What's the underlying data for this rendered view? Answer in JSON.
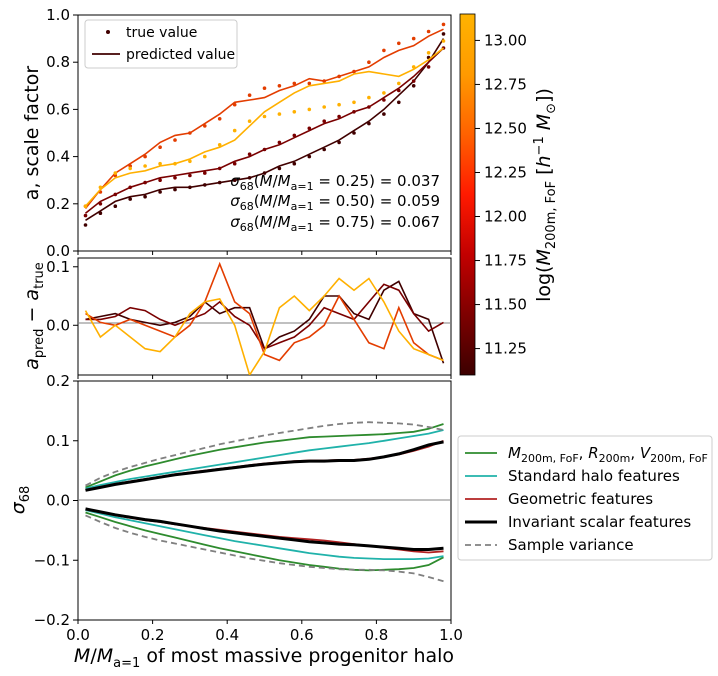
{
  "chart_data": [
    {
      "type": "line",
      "panel": "top",
      "ylabel": "a, scale factor",
      "xlim": [
        0,
        1
      ],
      "ylim": [
        0,
        1
      ],
      "yticks": [
        "0.0",
        "0.2",
        "0.4",
        "0.6",
        "0.8",
        "1.0"
      ],
      "legend": {
        "placement": "top-left",
        "entries": [
          "true value",
          "predicted value"
        ]
      },
      "annotations": [
        "σ68(M/Ma=1 = 0.25) = 0.037",
        "σ68(M/Ma=1 = 0.50) = 0.059",
        "σ68(M/Ma=1 = 0.75) = 0.067"
      ],
      "x": [
        0.02,
        0.06,
        0.1,
        0.14,
        0.18,
        0.22,
        0.26,
        0.3,
        0.34,
        0.38,
        0.42,
        0.46,
        0.5,
        0.54,
        0.58,
        0.62,
        0.66,
        0.7,
        0.74,
        0.78,
        0.82,
        0.86,
        0.9,
        0.94,
        0.98
      ],
      "series": [
        {
          "mass": 11.1,
          "color": "#400000",
          "style": "dots",
          "values": [
            0.11,
            0.16,
            0.19,
            0.22,
            0.23,
            0.25,
            0.26,
            0.27,
            0.28,
            0.29,
            0.3,
            0.31,
            0.33,
            0.35,
            0.37,
            0.4,
            0.43,
            0.46,
            0.5,
            0.54,
            0.58,
            0.63,
            0.7,
            0.82,
            0.92
          ]
        },
        {
          "mass": 11.1,
          "color": "#400000",
          "style": "line",
          "values": [
            0.13,
            0.17,
            0.21,
            0.23,
            0.24,
            0.26,
            0.27,
            0.27,
            0.28,
            0.29,
            0.3,
            0.31,
            0.33,
            0.36,
            0.38,
            0.41,
            0.44,
            0.47,
            0.51,
            0.55,
            0.6,
            0.66,
            0.72,
            0.8,
            0.9
          ]
        },
        {
          "mass": 11.6,
          "color": "#7a0000",
          "style": "dots",
          "values": [
            0.15,
            0.2,
            0.24,
            0.27,
            0.29,
            0.3,
            0.31,
            0.32,
            0.33,
            0.35,
            0.37,
            0.41,
            0.43,
            0.46,
            0.49,
            0.52,
            0.55,
            0.57,
            0.59,
            0.61,
            0.64,
            0.68,
            0.72,
            0.78,
            0.86
          ]
        },
        {
          "mass": 11.6,
          "color": "#7a0000",
          "style": "line",
          "values": [
            0.16,
            0.21,
            0.24,
            0.27,
            0.29,
            0.31,
            0.32,
            0.33,
            0.34,
            0.35,
            0.38,
            0.4,
            0.43,
            0.45,
            0.48,
            0.51,
            0.54,
            0.56,
            0.59,
            0.61,
            0.65,
            0.69,
            0.74,
            0.8,
            0.86
          ]
        },
        {
          "mass": 12.2,
          "color": "#e33d00",
          "style": "dots",
          "values": [
            0.19,
            0.25,
            0.32,
            0.36,
            0.4,
            0.44,
            0.47,
            0.5,
            0.53,
            0.56,
            0.62,
            0.66,
            0.69,
            0.7,
            0.71,
            0.71,
            0.72,
            0.74,
            0.76,
            0.8,
            0.85,
            0.88,
            0.9,
            0.93,
            0.96
          ]
        },
        {
          "mass": 12.2,
          "color": "#e33d00",
          "style": "line",
          "values": [
            0.18,
            0.26,
            0.33,
            0.37,
            0.41,
            0.46,
            0.49,
            0.5,
            0.54,
            0.58,
            0.63,
            0.64,
            0.65,
            0.68,
            0.7,
            0.73,
            0.72,
            0.74,
            0.76,
            0.78,
            0.82,
            0.85,
            0.87,
            0.91,
            0.94
          ]
        },
        {
          "mass": 12.9,
          "color": "#ffb000",
          "style": "dots",
          "values": [
            0.19,
            0.27,
            0.33,
            0.35,
            0.36,
            0.37,
            0.37,
            0.38,
            0.4,
            0.45,
            0.51,
            0.55,
            0.57,
            0.58,
            0.59,
            0.6,
            0.61,
            0.62,
            0.63,
            0.65,
            0.67,
            0.71,
            0.78,
            0.84,
            0.89
          ]
        },
        {
          "mass": 12.9,
          "color": "#ffb000",
          "style": "line",
          "values": [
            0.19,
            0.26,
            0.31,
            0.33,
            0.34,
            0.36,
            0.37,
            0.39,
            0.42,
            0.44,
            0.47,
            0.53,
            0.59,
            0.63,
            0.67,
            0.7,
            0.71,
            0.72,
            0.75,
            0.76,
            0.75,
            0.74,
            0.77,
            0.81,
            0.86
          ]
        }
      ]
    },
    {
      "type": "line",
      "panel": "middle",
      "ylabel": "apred − atrue",
      "xlim": [
        0,
        1
      ],
      "ylim": [
        -0.085,
        0.115
      ],
      "yticks": [
        "0.1",
        "0.0"
      ],
      "x": [
        0.02,
        0.06,
        0.1,
        0.14,
        0.18,
        0.22,
        0.26,
        0.3,
        0.34,
        0.38,
        0.42,
        0.46,
        0.5,
        0.54,
        0.58,
        0.62,
        0.66,
        0.7,
        0.74,
        0.78,
        0.82,
        0.86,
        0.9,
        0.94,
        0.98
      ],
      "series": [
        {
          "mass": 11.1,
          "color": "#400000",
          "values": [
            0.01,
            0.015,
            0.02,
            0.01,
            0.005,
            0.0,
            0.005,
            0.015,
            0.04,
            0.02,
            0.03,
            0.03,
            -0.04,
            -0.02,
            -0.01,
            0.01,
            0.05,
            0.05,
            0.02,
            0.01,
            0.06,
            0.075,
            0.02,
            0.01,
            -0.065
          ]
        },
        {
          "mass": 11.6,
          "color": "#7a0000",
          "values": [
            0.01,
            0.01,
            0.015,
            0.03,
            0.025,
            0.01,
            0.0,
            0.01,
            0.02,
            0.04,
            0.015,
            0.0,
            -0.04,
            -0.03,
            -0.02,
            0.0,
            0.03,
            0.02,
            0.01,
            0.04,
            0.07,
            0.06,
            0.02,
            -0.01,
            0.005
          ]
        },
        {
          "mass": 12.2,
          "color": "#e33d00",
          "values": [
            0.02,
            0.005,
            0.0,
            0.01,
            0.0,
            -0.01,
            -0.02,
            0.0,
            0.04,
            0.105,
            0.04,
            0.02,
            -0.05,
            -0.06,
            -0.03,
            -0.02,
            0.0,
            0.05,
            0.01,
            -0.03,
            -0.04,
            0.03,
            -0.03,
            -0.05,
            -0.06
          ]
        },
        {
          "mass": 12.9,
          "color": "#ffb000",
          "values": [
            0.025,
            -0.02,
            0.0,
            -0.02,
            -0.04,
            -0.045,
            -0.02,
            0.02,
            0.04,
            0.045,
            0.0,
            -0.085,
            -0.045,
            0.03,
            0.05,
            0.025,
            0.05,
            0.08,
            0.06,
            0.08,
            0.04,
            -0.01,
            -0.04,
            -0.05,
            -0.06
          ]
        }
      ]
    },
    {
      "type": "line",
      "panel": "bottom",
      "ylabel": "σ68",
      "xlabel": "M/Ma=1 of most massive progenitor halo",
      "xlim": [
        0,
        1
      ],
      "ylim": [
        -0.2,
        0.2
      ],
      "xticks": [
        "0.0",
        "0.2",
        "0.4",
        "0.6",
        "0.8",
        "1.0"
      ],
      "yticks": [
        "0.2",
        "0.1",
        "0.0",
        "−0.1",
        "−0.2"
      ],
      "legend": {
        "placement": "outside-right"
      },
      "x": [
        0.02,
        0.06,
        0.1,
        0.14,
        0.18,
        0.22,
        0.26,
        0.3,
        0.34,
        0.38,
        0.42,
        0.46,
        0.5,
        0.54,
        0.58,
        0.62,
        0.66,
        0.7,
        0.74,
        0.78,
        0.82,
        0.86,
        0.9,
        0.94,
        0.98
      ],
      "series": [
        {
          "name": "M200m,FoF, R200m, V200m,FoF",
          "color": "#2e8b2e",
          "width": 1.8,
          "dash": "",
          "upper": [
            0.022,
            0.032,
            0.042,
            0.05,
            0.057,
            0.063,
            0.069,
            0.075,
            0.08,
            0.085,
            0.089,
            0.093,
            0.097,
            0.1,
            0.103,
            0.106,
            0.107,
            0.108,
            0.109,
            0.11,
            0.111,
            0.113,
            0.115,
            0.12,
            0.128
          ],
          "lower": [
            -0.02,
            -0.028,
            -0.036,
            -0.043,
            -0.05,
            -0.056,
            -0.062,
            -0.068,
            -0.074,
            -0.08,
            -0.085,
            -0.09,
            -0.095,
            -0.1,
            -0.104,
            -0.108,
            -0.111,
            -0.114,
            -0.116,
            -0.117,
            -0.116,
            -0.115,
            -0.113,
            -0.108,
            -0.095
          ]
        },
        {
          "name": "Standard halo features",
          "color": "#20b2aa",
          "width": 1.8,
          "dash": "",
          "upper": [
            0.02,
            0.026,
            0.031,
            0.036,
            0.04,
            0.044,
            0.048,
            0.052,
            0.056,
            0.06,
            0.064,
            0.068,
            0.072,
            0.076,
            0.08,
            0.084,
            0.087,
            0.09,
            0.093,
            0.096,
            0.1,
            0.104,
            0.108,
            0.112,
            0.118
          ],
          "lower": [
            -0.016,
            -0.022,
            -0.028,
            -0.033,
            -0.038,
            -0.043,
            -0.048,
            -0.053,
            -0.058,
            -0.063,
            -0.068,
            -0.072,
            -0.076,
            -0.08,
            -0.084,
            -0.088,
            -0.091,
            -0.094,
            -0.096,
            -0.097,
            -0.098,
            -0.098,
            -0.098,
            -0.097,
            -0.093
          ]
        },
        {
          "name": "Geometric features",
          "color": "#b22222",
          "width": 1.8,
          "dash": "",
          "upper": [
            0.018,
            0.023,
            0.028,
            0.032,
            0.036,
            0.04,
            0.044,
            0.047,
            0.05,
            0.053,
            0.056,
            0.059,
            0.062,
            0.064,
            0.066,
            0.067,
            0.067,
            0.068,
            0.068,
            0.07,
            0.073,
            0.077,
            0.083,
            0.09,
            0.1
          ],
          "lower": [
            -0.015,
            -0.02,
            -0.025,
            -0.029,
            -0.033,
            -0.036,
            -0.04,
            -0.043,
            -0.046,
            -0.049,
            -0.052,
            -0.055,
            -0.058,
            -0.061,
            -0.063,
            -0.065,
            -0.067,
            -0.07,
            -0.073,
            -0.076,
            -0.079,
            -0.082,
            -0.085,
            -0.087,
            -0.085
          ]
        },
        {
          "name": "Invariant scalar features",
          "color": "#000000",
          "width": 3.0,
          "dash": "",
          "upper": [
            0.017,
            0.022,
            0.027,
            0.031,
            0.035,
            0.039,
            0.043,
            0.046,
            0.049,
            0.052,
            0.055,
            0.058,
            0.061,
            0.063,
            0.065,
            0.066,
            0.066,
            0.067,
            0.067,
            0.069,
            0.073,
            0.078,
            0.085,
            0.093,
            0.098
          ],
          "lower": [
            -0.014,
            -0.019,
            -0.024,
            -0.028,
            -0.032,
            -0.035,
            -0.039,
            -0.043,
            -0.047,
            -0.051,
            -0.054,
            -0.057,
            -0.06,
            -0.063,
            -0.066,
            -0.069,
            -0.071,
            -0.073,
            -0.074,
            -0.076,
            -0.078,
            -0.08,
            -0.082,
            -0.082,
            -0.08
          ]
        },
        {
          "name": "Sample variance",
          "color": "#808080",
          "width": 1.8,
          "dash": "6,4",
          "upper": [
            0.025,
            0.038,
            0.048,
            0.056,
            0.063,
            0.07,
            0.076,
            0.082,
            0.088,
            0.094,
            0.099,
            0.104,
            0.109,
            0.113,
            0.117,
            0.121,
            0.125,
            0.128,
            0.13,
            0.131,
            0.13,
            0.129,
            0.127,
            0.123,
            0.118
          ],
          "lower": [
            -0.025,
            -0.036,
            -0.046,
            -0.054,
            -0.061,
            -0.067,
            -0.072,
            -0.077,
            -0.082,
            -0.087,
            -0.092,
            -0.097,
            -0.101,
            -0.105,
            -0.108,
            -0.111,
            -0.113,
            -0.115,
            -0.116,
            -0.116,
            -0.117,
            -0.119,
            -0.122,
            -0.128,
            -0.135
          ]
        }
      ]
    },
    {
      "type": "heatmap",
      "panel": "colorbar",
      "label": "log(M200m,FoF [h−1 M⊙])",
      "range": [
        11.1,
        13.15
      ],
      "ticks": [
        "11.25",
        "11.50",
        "11.75",
        "12.00",
        "12.25",
        "12.50",
        "12.75",
        "13.00"
      ],
      "colormap": [
        "#3c0000",
        "#7e0000",
        "#c20000",
        "#ff1a00",
        "#ff6200",
        "#ff9a00",
        "#ffb300"
      ]
    }
  ]
}
